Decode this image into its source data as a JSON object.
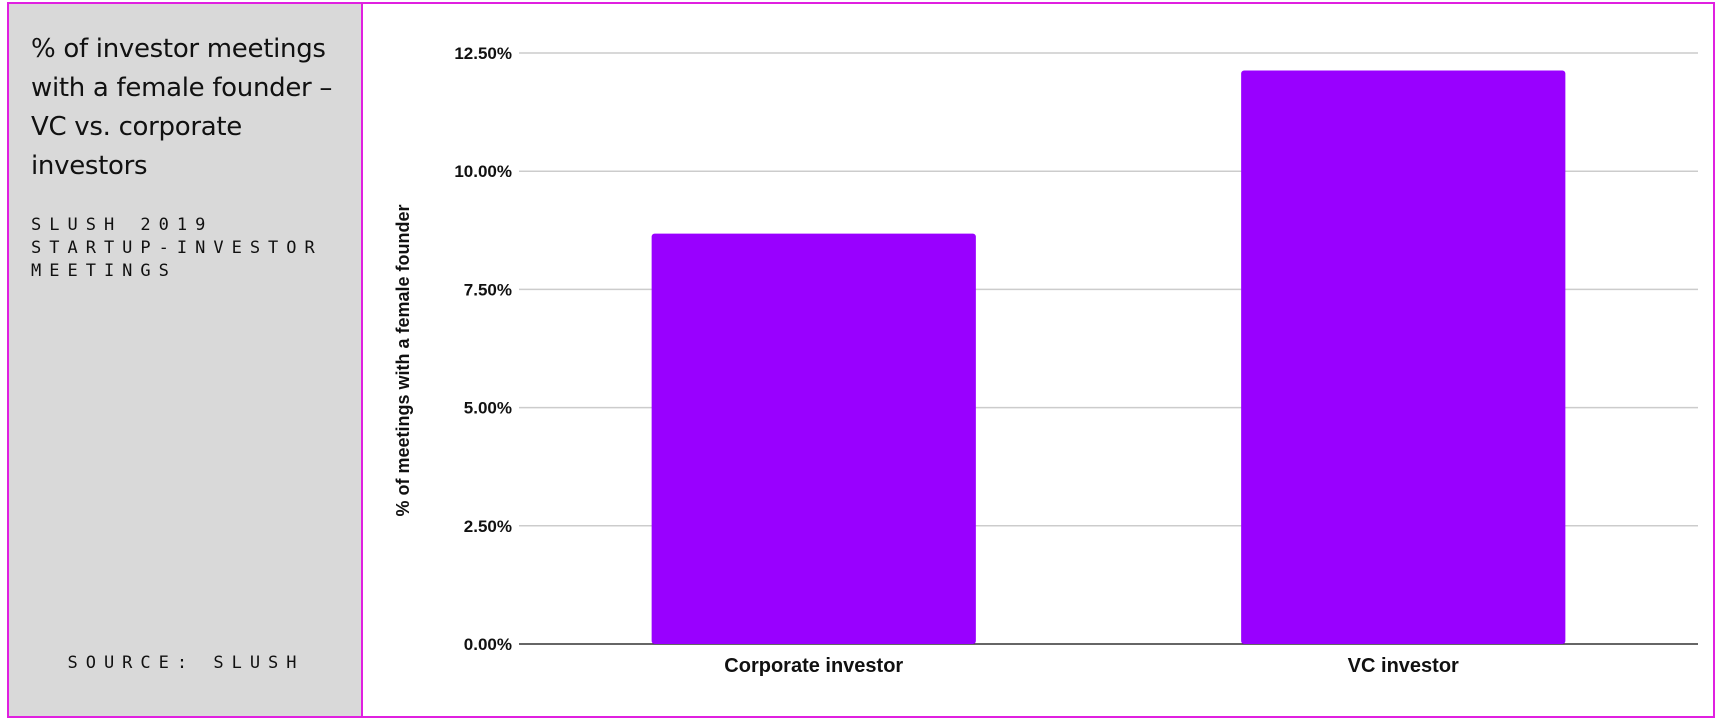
{
  "sidebar": {
    "title": "% of investor meetings with a female founder – VC vs. corporate investors",
    "subtitle": "Slush 2019 startup-investor meetings",
    "source": "SOURCE: SLUSH"
  },
  "colors": {
    "bar": "#9900ff",
    "frame": "#e020e0",
    "sidebar_bg": "#d9d9d9",
    "gridline": "#cccccc",
    "axis": "#333333"
  },
  "chart_data": {
    "type": "bar",
    "categories": [
      "Corporate investor",
      "VC investor"
    ],
    "values": [
      8.68,
      12.13
    ],
    "ylabel": "% of meetings with a female founder",
    "xlabel": "",
    "ylim": [
      0,
      12.5
    ],
    "yticks": [
      0,
      2.5,
      5,
      7.5,
      10,
      12.5
    ],
    "ytick_labels": [
      "0.00%",
      "2.50%",
      "5.00%",
      "7.50%",
      "10.00%",
      "12.50%"
    ],
    "grid": true,
    "legend": "none"
  }
}
